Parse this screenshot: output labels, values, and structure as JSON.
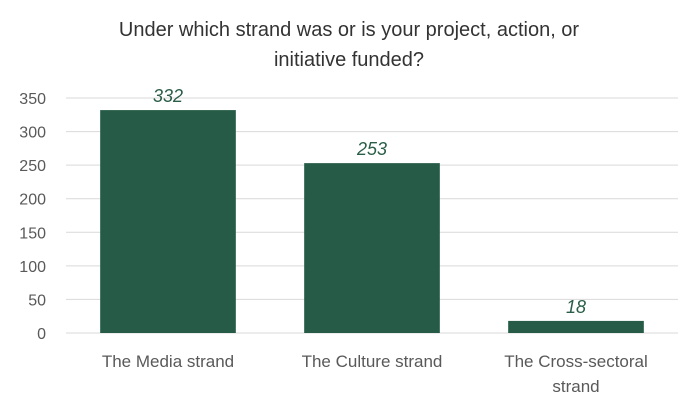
{
  "chart_data": {
    "type": "bar",
    "title_lines": [
      "Under which strand was or is your project, action, or",
      "initiative funded?"
    ],
    "categories": [
      [
        "The Media strand"
      ],
      [
        "The Culture strand"
      ],
      [
        "The Cross-sectoral",
        "strand"
      ]
    ],
    "values": [
      332,
      253,
      18
    ],
    "data_labels": [
      "332",
      "253",
      "18"
    ],
    "ylim": [
      0,
      350
    ],
    "yticks": [
      0,
      50,
      100,
      150,
      200,
      250,
      300,
      350
    ],
    "grid": true,
    "bar_color": "#265c47",
    "label_color": "#2b5e48"
  }
}
